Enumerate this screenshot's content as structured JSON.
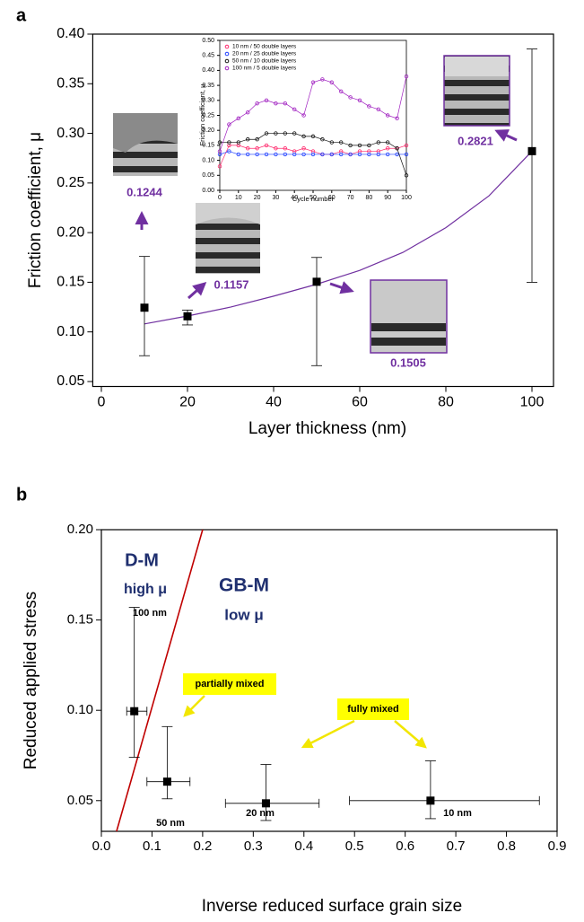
{
  "chart_data": [
    {
      "type": "scatter",
      "panel_label": "a",
      "xlabel": "Layer thickness (nm)",
      "ylabel": "Friction coefficient, μ",
      "xlim": [
        -2,
        105
      ],
      "ylim": [
        0.045,
        0.4
      ],
      "xticks": [
        0,
        20,
        40,
        60,
        80,
        100
      ],
      "yticks": [
        {
          "value": 0.05,
          "label": "0.05"
        },
        {
          "value": 0.1,
          "label": "0.10"
        },
        {
          "value": 0.15,
          "label": "0.15"
        },
        {
          "value": 0.2,
          "label": "0.20"
        },
        {
          "value": 0.25,
          "label": "0.25"
        },
        {
          "value": 0.3,
          "label": "0.30"
        },
        {
          "value": 0.35,
          "label": "0.35"
        },
        {
          "value": 0.4,
          "label": "0.40"
        }
      ],
      "x": [
        10,
        20,
        50,
        100
      ],
      "values": [
        0.1244,
        0.1157,
        0.1505,
        0.2821
      ],
      "err_low": [
        0.076,
        0.107,
        0.066,
        0.15
      ],
      "err_high": [
        0.176,
        0.122,
        0.175,
        0.385
      ],
      "color": "#000000",
      "label_color": "#7030a0",
      "fit": {
        "x": [
          10,
          20,
          30,
          40,
          50,
          60,
          70,
          80,
          90,
          100
        ],
        "values": [
          0.108,
          0.116,
          0.125,
          0.136,
          0.148,
          0.162,
          0.18,
          0.205,
          0.237,
          0.282
        ],
        "color": "#7030a0"
      }
    },
    {
      "type": "line",
      "xlabel": "Cycle number",
      "ylabel": "Friction coefficient, μ",
      "xlim": [
        0,
        100
      ],
      "ylim": [
        0,
        0.5
      ],
      "xticks": [
        0,
        10,
        20,
        30,
        40,
        50,
        60,
        70,
        80,
        90,
        100
      ],
      "yticks": [
        {
          "value": 0,
          "label": "0.00"
        },
        {
          "value": 0.05,
          "label": "0.05"
        },
        {
          "value": 0.1,
          "label": "0.10"
        },
        {
          "value": 0.15,
          "label": "0.15"
        },
        {
          "value": 0.2,
          "label": "0.20"
        },
        {
          "value": 0.25,
          "label": "0.25"
        },
        {
          "value": 0.3,
          "label": "0.30"
        },
        {
          "value": 0.35,
          "label": "0.35"
        },
        {
          "value": 0.4,
          "label": "0.40"
        },
        {
          "value": 0.45,
          "label": "0.45"
        },
        {
          "value": 0.5,
          "label": "0.50"
        }
      ],
      "x": [
        0,
        5,
        10,
        15,
        20,
        25,
        30,
        35,
        40,
        45,
        50,
        55,
        60,
        65,
        70,
        75,
        80,
        85,
        90,
        95,
        100
      ],
      "series": [
        {
          "name": "10 nm / 50 double layers",
          "color": "#ff2a6d",
          "values": [
            0.08,
            0.15,
            0.15,
            0.14,
            0.14,
            0.15,
            0.14,
            0.14,
            0.13,
            0.14,
            0.13,
            0.12,
            0.12,
            0.13,
            0.12,
            0.13,
            0.13,
            0.13,
            0.14,
            0.14,
            0.15
          ]
        },
        {
          "name": "20 nm / 25 double layers",
          "color": "#1f3fff",
          "values": [
            0.12,
            0.13,
            0.12,
            0.12,
            0.12,
            0.12,
            0.12,
            0.12,
            0.12,
            0.12,
            0.12,
            0.12,
            0.12,
            0.12,
            0.12,
            0.12,
            0.12,
            0.12,
            0.12,
            0.12,
            0.12
          ]
        },
        {
          "name": "50 nm / 10 double layers",
          "color": "#111111",
          "values": [
            0.16,
            0.16,
            0.16,
            0.17,
            0.17,
            0.19,
            0.19,
            0.19,
            0.19,
            0.18,
            0.18,
            0.17,
            0.16,
            0.16,
            0.15,
            0.15,
            0.15,
            0.16,
            0.16,
            0.14,
            0.05
          ]
        },
        {
          "name": "100 nm / 5 double layers",
          "color": "#a020c0",
          "values": [
            0.13,
            0.22,
            0.24,
            0.26,
            0.29,
            0.3,
            0.29,
            0.29,
            0.27,
            0.25,
            0.36,
            0.37,
            0.36,
            0.33,
            0.31,
            0.3,
            0.28,
            0.27,
            0.25,
            0.24,
            0.38
          ]
        }
      ]
    },
    {
      "type": "scatter",
      "panel_label": "b",
      "xlabel": "Inverse reduced surface grain size",
      "ylabel": "Reduced applied stress",
      "xlim": [
        0,
        0.9
      ],
      "ylim": [
        0.033,
        0.2
      ],
      "xticks": [
        {
          "value": 0,
          "label": "0.0"
        },
        {
          "value": 0.1,
          "label": "0.1"
        },
        {
          "value": 0.2,
          "label": "0.2"
        },
        {
          "value": 0.3,
          "label": "0.3"
        },
        {
          "value": 0.4,
          "label": "0.4"
        },
        {
          "value": 0.5,
          "label": "0.5"
        },
        {
          "value": 0.6,
          "label": "0.6"
        },
        {
          "value": 0.7,
          "label": "0.7"
        },
        {
          "value": 0.8,
          "label": "0.8"
        },
        {
          "value": 0.9,
          "label": "0.9"
        }
      ],
      "yticks": [
        {
          "value": 0.05,
          "label": "0.05"
        },
        {
          "value": 0.1,
          "label": "0.10"
        },
        {
          "value": 0.15,
          "label": "0.15"
        },
        {
          "value": 0.2,
          "label": "0.20"
        }
      ],
      "x": [
        0.065,
        0.13,
        0.325,
        0.65
      ],
      "values": [
        0.0995,
        0.0605,
        0.0485,
        0.05
      ],
      "err_low": [
        0.074,
        0.051,
        0.039,
        0.04
      ],
      "err_high": [
        0.157,
        0.091,
        0.07,
        0.072
      ],
      "xerr_low": [
        0.05,
        0.09,
        0.245,
        0.49
      ],
      "xerr_high": [
        0.09,
        0.175,
        0.43,
        0.865
      ],
      "color": "#000000",
      "point_labels": [
        "100 nm",
        "50 nm",
        "20 nm",
        "10 nm"
      ],
      "boundary": {
        "x": [
          0.03,
          0.2
        ],
        "values": [
          0.033,
          0.2
        ],
        "color": "#c00000"
      },
      "regions": [
        "D-M",
        "high μ",
        "GB-M",
        "low μ"
      ],
      "callouts": [
        "partially mixed",
        "fully mixed"
      ]
    }
  ]
}
